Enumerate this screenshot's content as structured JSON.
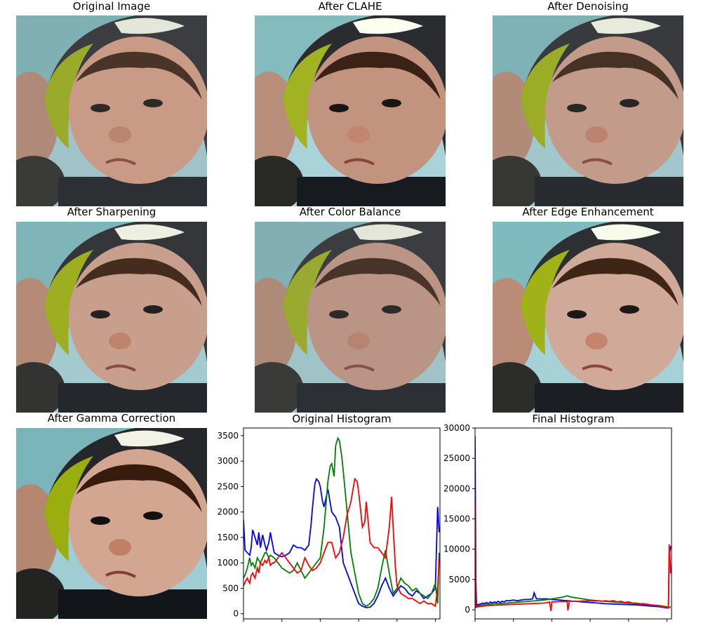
{
  "panels": [
    {
      "title": "Original Image",
      "variant": "original"
    },
    {
      "title": "After CLAHE",
      "variant": "clahe"
    },
    {
      "title": "After Denoising",
      "variant": "denoise"
    },
    {
      "title": "After Sharpening",
      "variant": "sharpen"
    },
    {
      "title": "After Color Balance",
      "variant": "balance"
    },
    {
      "title": "After Edge Enhancement",
      "variant": "edge"
    },
    {
      "title": "After Gamma Correction",
      "variant": "gamma"
    }
  ],
  "chart_data": [
    {
      "type": "line",
      "title": "Original Histogram",
      "xlim": [
        0,
        256
      ],
      "ylim": [
        -100,
        3650
      ],
      "xticks": [
        0,
        50,
        100,
        150,
        200,
        250
      ],
      "yticks": [
        0,
        500,
        1000,
        1500,
        2000,
        2500,
        3000,
        3500
      ],
      "series": [
        {
          "color": "#0000ff",
          "x": [
            0,
            2,
            5,
            8,
            10,
            12,
            15,
            18,
            20,
            22,
            25,
            28,
            30,
            33,
            35,
            38,
            40,
            45,
            50,
            55,
            60,
            65,
            70,
            75,
            80,
            85,
            88,
            90,
            93,
            95,
            98,
            100,
            103,
            105,
            110,
            115,
            120,
            125,
            130,
            135,
            140,
            145,
            150,
            155,
            160,
            165,
            170,
            175,
            180,
            185,
            190,
            195,
            200,
            205,
            210,
            215,
            220,
            225,
            230,
            235,
            240,
            245,
            250,
            253,
            255
          ],
          "y": [
            1850,
            1250,
            1200,
            1150,
            1300,
            1650,
            1500,
            1350,
            1600,
            1300,
            1550,
            1350,
            1250,
            1400,
            1600,
            1350,
            1200,
            1150,
            1120,
            1150,
            1200,
            1350,
            1300,
            1300,
            1250,
            1350,
            1750,
            2100,
            2550,
            2650,
            2600,
            2500,
            2200,
            2100,
            2450,
            2000,
            1900,
            1700,
            1000,
            800,
            600,
            400,
            200,
            150,
            120,
            130,
            200,
            350,
            550,
            700,
            500,
            350,
            450,
            550,
            500,
            400,
            350,
            450,
            400,
            300,
            350,
            400,
            500,
            2100,
            1600
          ]
        },
        {
          "color": "#008000",
          "x": [
            0,
            3,
            5,
            8,
            10,
            12,
            15,
            18,
            20,
            22,
            25,
            28,
            30,
            33,
            35,
            40,
            45,
            50,
            55,
            60,
            65,
            70,
            75,
            80,
            85,
            90,
            95,
            100,
            105,
            110,
            113,
            115,
            118,
            120,
            123,
            125,
            128,
            130,
            135,
            140,
            145,
            150,
            155,
            160,
            165,
            170,
            175,
            180,
            185,
            190,
            195,
            200,
            205,
            210,
            215,
            220,
            225,
            230,
            235,
            240,
            245,
            250,
            253,
            255
          ],
          "y": [
            700,
            800,
            900,
            1100,
            950,
            1000,
            900,
            1100,
            1050,
            1000,
            1100,
            1200,
            1200,
            1100,
            1150,
            1100,
            1000,
            900,
            850,
            800,
            850,
            1000,
            850,
            700,
            800,
            900,
            1000,
            1100,
            1700,
            2600,
            2900,
            2950,
            2700,
            3300,
            3450,
            3400,
            3100,
            2800,
            2000,
            1200,
            800,
            400,
            200,
            150,
            200,
            300,
            500,
            900,
            1250,
            800,
            400,
            500,
            700,
            600,
            550,
            450,
            500,
            400,
            350,
            300,
            400,
            600,
            200,
            1200
          ]
        },
        {
          "color": "#ff0000",
          "x": [
            0,
            3,
            5,
            8,
            10,
            12,
            15,
            18,
            20,
            22,
            25,
            28,
            30,
            33,
            35,
            38,
            40,
            45,
            50,
            55,
            60,
            65,
            70,
            75,
            80,
            85,
            90,
            95,
            100,
            105,
            110,
            115,
            120,
            125,
            130,
            135,
            140,
            145,
            148,
            150,
            155,
            158,
            160,
            165,
            170,
            175,
            180,
            185,
            190,
            193,
            195,
            198,
            200,
            205,
            210,
            215,
            220,
            225,
            230,
            235,
            240,
            245,
            250,
            253,
            255
          ],
          "y": [
            550,
            650,
            700,
            600,
            750,
            800,
            700,
            900,
            800,
            1000,
            950,
            1050,
            1000,
            1100,
            950,
            1000,
            1000,
            1100,
            1200,
            1100,
            1000,
            900,
            800,
            850,
            1100,
            950,
            850,
            900,
            1000,
            1200,
            1400,
            1400,
            1100,
            1200,
            1500,
            1950,
            2200,
            2650,
            2600,
            2400,
            1700,
            1800,
            2200,
            1400,
            1300,
            1300,
            1200,
            1100,
            1700,
            2300,
            1700,
            900,
            550,
            400,
            350,
            300,
            300,
            250,
            200,
            250,
            200,
            200,
            150,
            500,
            1100
          ]
        }
      ]
    },
    {
      "type": "line",
      "title": "Final Histogram",
      "xlim": [
        0,
        256
      ],
      "ylim": [
        -1500,
        30000
      ],
      "xticks": [
        0,
        50,
        100,
        150,
        200,
        250
      ],
      "yticks": [
        0,
        5000,
        10000,
        15000,
        20000,
        25000,
        30000
      ],
      "series": [
        {
          "color": "#0000ff",
          "x": [
            0,
            1,
            2,
            3,
            5,
            8,
            10,
            12,
            15,
            18,
            20,
            22,
            25,
            28,
            30,
            33,
            35,
            38,
            40,
            45,
            50,
            55,
            60,
            65,
            70,
            75,
            77,
            80,
            85,
            90,
            95,
            100,
            110,
            120,
            130,
            140,
            150,
            160,
            170,
            180,
            190,
            200,
            210,
            220,
            230,
            240,
            245,
            250,
            252,
            253,
            255
          ],
          "y": [
            28700,
            5000,
            600,
            800,
            900,
            1000,
            1100,
            1000,
            1200,
            1000,
            1300,
            1100,
            1300,
            1200,
            1400,
            1200,
            1400,
            1300,
            1500,
            1500,
            1600,
            1500,
            1600,
            1700,
            1700,
            1800,
            2800,
            1800,
            1800,
            1800,
            1800,
            1700,
            1600,
            1500,
            1400,
            1300,
            1200,
            1100,
            1000,
            950,
            900,
            850,
            800,
            700,
            600,
            500,
            400,
            300,
            300,
            9000,
            10500
          ]
        },
        {
          "color": "#008000",
          "x": [
            0,
            1,
            2,
            3,
            5,
            10,
            15,
            20,
            25,
            30,
            40,
            50,
            60,
            70,
            80,
            90,
            100,
            105,
            110,
            115,
            120,
            125,
            130,
            135,
            140,
            150,
            160,
            170,
            180,
            190,
            200,
            210,
            220,
            230,
            240,
            250,
            253,
            255
          ],
          "y": [
            4000,
            600,
            500,
            600,
            700,
            800,
            900,
            900,
            1000,
            1000,
            1100,
            1200,
            1300,
            1400,
            1500,
            1600,
            1800,
            1900,
            2000,
            2100,
            2300,
            2100,
            2000,
            1900,
            1800,
            1600,
            1500,
            1400,
            1300,
            1200,
            1100,
            1000,
            900,
            800,
            700,
            500,
            400,
            500
          ]
        },
        {
          "color": "#ff0000",
          "x": [
            0,
            1,
            2,
            3,
            5,
            10,
            15,
            20,
            30,
            40,
            50,
            60,
            70,
            80,
            90,
            95,
            97,
            99,
            100,
            103,
            105,
            110,
            115,
            120,
            121,
            123,
            125,
            130,
            135,
            140,
            145,
            150,
            155,
            160,
            165,
            170,
            175,
            180,
            185,
            190,
            195,
            200,
            205,
            210,
            215,
            220,
            225,
            230,
            235,
            240,
            245,
            250,
            252,
            253,
            255
          ],
          "y": [
            18000,
            400,
            400,
            500,
            500,
            600,
            650,
            700,
            800,
            850,
            900,
            950,
            1000,
            1050,
            1100,
            1200,
            1300,
            -200,
            1300,
            1300,
            1300,
            1350,
            1350,
            1350,
            -100,
            1400,
            1400,
            1400,
            1400,
            1450,
            1450,
            1500,
            1450,
            1500,
            1400,
            1500,
            1400,
            1500,
            1300,
            1400,
            1200,
            1300,
            1100,
            1100,
            1000,
            1000,
            900,
            800,
            700,
            600,
            500,
            400,
            300,
            10800,
            6000
          ]
        }
      ]
    }
  ]
}
